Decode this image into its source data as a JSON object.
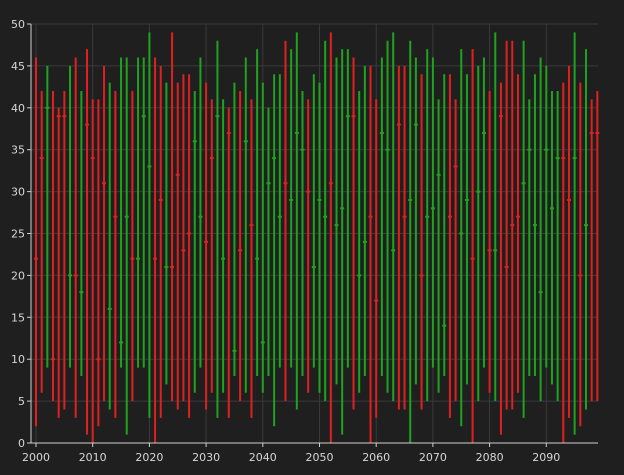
{
  "chart_data": {
    "type": "hlc-bars",
    "x_range": [
      2000,
      2099
    ],
    "ylim": [
      0,
      50
    ],
    "y_ticks": [
      0,
      5,
      10,
      15,
      20,
      25,
      30,
      35,
      40,
      45,
      50
    ],
    "x_ticks": [
      2000,
      2010,
      2020,
      2030,
      2040,
      2050,
      2060,
      2070,
      2080,
      2090
    ],
    "grid": true,
    "colors": {
      "up": "#1fa31f",
      "down": "#e02020",
      "background": "#1f1f1f",
      "grid": "#3a3a3a",
      "axis": "#cfcfcf",
      "text": "#d6d6d6"
    },
    "bars": [
      {
        "x": 2000,
        "low": 2,
        "high": 46,
        "close": 22,
        "dir": "down"
      },
      {
        "x": 2001,
        "low": 6,
        "high": 42,
        "close": 34,
        "dir": "down"
      },
      {
        "x": 2002,
        "low": 9,
        "high": 45,
        "close": 40,
        "dir": "up"
      },
      {
        "x": 2003,
        "low": 5,
        "high": 42,
        "close": 10,
        "dir": "down"
      },
      {
        "x": 2004,
        "low": 3,
        "high": 40,
        "close": 39,
        "dir": "down"
      },
      {
        "x": 2005,
        "low": 4,
        "high": 42,
        "close": 39,
        "dir": "down"
      },
      {
        "x": 2006,
        "low": 9,
        "high": 45,
        "close": 20,
        "dir": "up"
      },
      {
        "x": 2007,
        "low": 3,
        "high": 46,
        "close": 20,
        "dir": "down"
      },
      {
        "x": 2008,
        "low": 8,
        "high": 42,
        "close": 18,
        "dir": "up"
      },
      {
        "x": 2009,
        "low": 1,
        "high": 47,
        "close": 38,
        "dir": "down"
      },
      {
        "x": 2010,
        "low": 0,
        "high": 41,
        "close": 34,
        "dir": "down"
      },
      {
        "x": 2011,
        "low": 2,
        "high": 41,
        "close": 10,
        "dir": "down"
      },
      {
        "x": 2012,
        "low": 5,
        "high": 45,
        "close": 31,
        "dir": "down"
      },
      {
        "x": 2013,
        "low": 4,
        "high": 43,
        "close": 16,
        "dir": "up"
      },
      {
        "x": 2014,
        "low": 3,
        "high": 42,
        "close": 27,
        "dir": "down"
      },
      {
        "x": 2015,
        "low": 9,
        "high": 46,
        "close": 12,
        "dir": "up"
      },
      {
        "x": 2016,
        "low": 1,
        "high": 46,
        "close": 27,
        "dir": "up"
      },
      {
        "x": 2017,
        "low": 5,
        "high": 42,
        "close": 22,
        "dir": "down"
      },
      {
        "x": 2018,
        "low": 9,
        "high": 46,
        "close": 22,
        "dir": "up"
      },
      {
        "x": 2019,
        "low": 9,
        "high": 46,
        "close": 39,
        "dir": "up"
      },
      {
        "x": 2020,
        "low": 3,
        "high": 49,
        "close": 33,
        "dir": "up"
      },
      {
        "x": 2021,
        "low": 0,
        "high": 46,
        "close": 22,
        "dir": "down"
      },
      {
        "x": 2022,
        "low": 3,
        "high": 45,
        "close": 29,
        "dir": "down"
      },
      {
        "x": 2023,
        "low": 7,
        "high": 43,
        "close": 21,
        "dir": "up"
      },
      {
        "x": 2024,
        "low": 5,
        "high": 49,
        "close": 21,
        "dir": "down"
      },
      {
        "x": 2025,
        "low": 4,
        "high": 43,
        "close": 32,
        "dir": "down"
      },
      {
        "x": 2026,
        "low": 5,
        "high": 44,
        "close": 23,
        "dir": "down"
      },
      {
        "x": 2027,
        "low": 3,
        "high": 44,
        "close": 25,
        "dir": "down"
      },
      {
        "x": 2028,
        "low": 6,
        "high": 42,
        "close": 36,
        "dir": "up"
      },
      {
        "x": 2029,
        "low": 9,
        "high": 46,
        "close": 27,
        "dir": "up"
      },
      {
        "x": 2030,
        "low": 4,
        "high": 43,
        "close": 24,
        "dir": "down"
      },
      {
        "x": 2031,
        "low": 6,
        "high": 41,
        "close": 34,
        "dir": "down"
      },
      {
        "x": 2032,
        "low": 3,
        "high": 48,
        "close": 39,
        "dir": "up"
      },
      {
        "x": 2033,
        "low": 6,
        "high": 41,
        "close": 22,
        "dir": "up"
      },
      {
        "x": 2034,
        "low": 3,
        "high": 40,
        "close": 37,
        "dir": "down"
      },
      {
        "x": 2035,
        "low": 8,
        "high": 43,
        "close": 11,
        "dir": "up"
      },
      {
        "x": 2036,
        "low": 5,
        "high": 42,
        "close": 23,
        "dir": "down"
      },
      {
        "x": 2037,
        "low": 6,
        "high": 46,
        "close": 36,
        "dir": "up"
      },
      {
        "x": 2038,
        "low": 3,
        "high": 41,
        "close": 26,
        "dir": "down"
      },
      {
        "x": 2039,
        "low": 8,
        "high": 47,
        "close": 22,
        "dir": "up"
      },
      {
        "x": 2040,
        "low": 6,
        "high": 43,
        "close": 12,
        "dir": "up"
      },
      {
        "x": 2041,
        "low": 8,
        "high": 40,
        "close": 31,
        "dir": "up"
      },
      {
        "x": 2042,
        "low": 2,
        "high": 44,
        "close": 34,
        "dir": "up"
      },
      {
        "x": 2043,
        "low": 9,
        "high": 44,
        "close": 27,
        "dir": "up"
      },
      {
        "x": 2044,
        "low": 5,
        "high": 48,
        "close": 31,
        "dir": "down"
      },
      {
        "x": 2045,
        "low": 9,
        "high": 47,
        "close": 29,
        "dir": "up"
      },
      {
        "x": 2046,
        "low": 4,
        "high": 49,
        "close": 37,
        "dir": "up"
      },
      {
        "x": 2047,
        "low": 8,
        "high": 42,
        "close": 35,
        "dir": "up"
      },
      {
        "x": 2048,
        "low": 6,
        "high": 41,
        "close": 30,
        "dir": "down"
      },
      {
        "x": 2049,
        "low": 9,
        "high": 44,
        "close": 21,
        "dir": "up"
      },
      {
        "x": 2050,
        "low": 6,
        "high": 43,
        "close": 29,
        "dir": "up"
      },
      {
        "x": 2051,
        "low": 5,
        "high": 48,
        "close": 27,
        "dir": "up"
      },
      {
        "x": 2052,
        "low": 0,
        "high": 49,
        "close": 31,
        "dir": "down"
      },
      {
        "x": 2053,
        "low": 7,
        "high": 46,
        "close": 26,
        "dir": "up"
      },
      {
        "x": 2054,
        "low": 1,
        "high": 47,
        "close": 28,
        "dir": "up"
      },
      {
        "x": 2055,
        "low": 9,
        "high": 47,
        "close": 39,
        "dir": "up"
      },
      {
        "x": 2056,
        "low": 4,
        "high": 46,
        "close": 39,
        "dir": "down"
      },
      {
        "x": 2057,
        "low": 6,
        "high": 42,
        "close": 20,
        "dir": "up"
      },
      {
        "x": 2058,
        "low": 8,
        "high": 45,
        "close": 24,
        "dir": "up"
      },
      {
        "x": 2059,
        "low": 0,
        "high": 45,
        "close": 27,
        "dir": "down"
      },
      {
        "x": 2060,
        "low": 3,
        "high": 41,
        "close": 17,
        "dir": "down"
      },
      {
        "x": 2061,
        "low": 8,
        "high": 46,
        "close": 37,
        "dir": "up"
      },
      {
        "x": 2062,
        "low": 6,
        "high": 48,
        "close": 35,
        "dir": "up"
      },
      {
        "x": 2063,
        "low": 5,
        "high": 49,
        "close": 23,
        "dir": "up"
      },
      {
        "x": 2064,
        "low": 4,
        "high": 45,
        "close": 38,
        "dir": "down"
      },
      {
        "x": 2065,
        "low": 4,
        "high": 45,
        "close": 27,
        "dir": "down"
      },
      {
        "x": 2066,
        "low": 0,
        "high": 48,
        "close": 29,
        "dir": "up"
      },
      {
        "x": 2067,
        "low": 7,
        "high": 46,
        "close": 38,
        "dir": "up"
      },
      {
        "x": 2068,
        "low": 4,
        "high": 44,
        "close": 20,
        "dir": "down"
      },
      {
        "x": 2069,
        "low": 5,
        "high": 47,
        "close": 27,
        "dir": "up"
      },
      {
        "x": 2070,
        "low": 9,
        "high": 46,
        "close": 28,
        "dir": "up"
      },
      {
        "x": 2071,
        "low": 6,
        "high": 41,
        "close": 32,
        "dir": "up"
      },
      {
        "x": 2072,
        "low": 8,
        "high": 44,
        "close": 14,
        "dir": "up"
      },
      {
        "x": 2073,
        "low": 3,
        "high": 44,
        "close": 27,
        "dir": "down"
      },
      {
        "x": 2074,
        "low": 5,
        "high": 41,
        "close": 33,
        "dir": "down"
      },
      {
        "x": 2075,
        "low": 2,
        "high": 47,
        "close": 25,
        "dir": "up"
      },
      {
        "x": 2076,
        "low": 7,
        "high": 44,
        "close": 29,
        "dir": "up"
      },
      {
        "x": 2077,
        "low": 0,
        "high": 47,
        "close": 22,
        "dir": "down"
      },
      {
        "x": 2078,
        "low": 5,
        "high": 45,
        "close": 30,
        "dir": "up"
      },
      {
        "x": 2079,
        "low": 9,
        "high": 46,
        "close": 37,
        "dir": "up"
      },
      {
        "x": 2080,
        "low": 6,
        "high": 42,
        "close": 23,
        "dir": "down"
      },
      {
        "x": 2081,
        "low": 5,
        "high": 49,
        "close": 23,
        "dir": "up"
      },
      {
        "x": 2082,
        "low": 1,
        "high": 43,
        "close": 39,
        "dir": "down"
      },
      {
        "x": 2083,
        "low": 4,
        "high": 48,
        "close": 21,
        "dir": "down"
      },
      {
        "x": 2084,
        "low": 4,
        "high": 48,
        "close": 26,
        "dir": "down"
      },
      {
        "x": 2085,
        "low": 6,
        "high": 44,
        "close": 27,
        "dir": "down"
      },
      {
        "x": 2086,
        "low": 3,
        "high": 48,
        "close": 31,
        "dir": "up"
      },
      {
        "x": 2087,
        "low": 8,
        "high": 41,
        "close": 35,
        "dir": "up"
      },
      {
        "x": 2088,
        "low": 8,
        "high": 44,
        "close": 26,
        "dir": "up"
      },
      {
        "x": 2089,
        "low": 5,
        "high": 46,
        "close": 18,
        "dir": "up"
      },
      {
        "x": 2090,
        "low": 9,
        "high": 45,
        "close": 35,
        "dir": "up"
      },
      {
        "x": 2091,
        "low": 7,
        "high": 42,
        "close": 28,
        "dir": "up"
      },
      {
        "x": 2092,
        "low": 5,
        "high": 42,
        "close": 34,
        "dir": "up"
      },
      {
        "x": 2093,
        "low": 0,
        "high": 43,
        "close": 34,
        "dir": "down"
      },
      {
        "x": 2094,
        "low": 3,
        "high": 45,
        "close": 29,
        "dir": "down"
      },
      {
        "x": 2095,
        "low": 1,
        "high": 49,
        "close": 34,
        "dir": "up"
      },
      {
        "x": 2096,
        "low": 2,
        "high": 43,
        "close": 20,
        "dir": "down"
      },
      {
        "x": 2097,
        "low": 4,
        "high": 47,
        "close": 26,
        "dir": "up"
      },
      {
        "x": 2098,
        "low": 5,
        "high": 41,
        "close": 37,
        "dir": "down"
      },
      {
        "x": 2099,
        "low": 5,
        "high": 42,
        "close": 37,
        "dir": "down"
      }
    ]
  }
}
